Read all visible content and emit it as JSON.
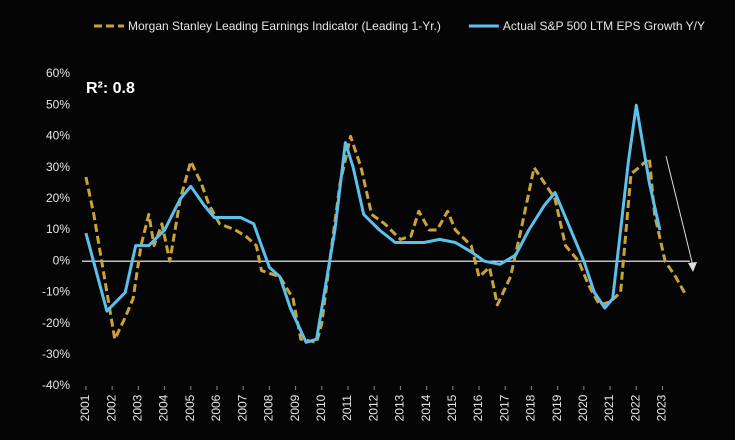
{
  "chart_data": {
    "type": "line",
    "annotation": "R²: 0.8",
    "legend": "top",
    "series": [
      {
        "name": "Morgan Stanley Leading Earnings Indicator (Leading 1-Yr.)",
        "color": "#c9a23a",
        "dash": true,
        "x": [
          2001,
          2001.3,
          2001.7,
          2002.1,
          2002.5,
          2002.8,
          2003.1,
          2003.4,
          2003.6,
          2003.9,
          2004.2,
          2004.6,
          2005,
          2005.4,
          2005.7,
          2006.1,
          2006.7,
          2007.1,
          2007.5,
          2007.7,
          2008.4,
          2008.9,
          2009.2,
          2009.8,
          2010,
          2010.3,
          2010.7,
          2011.1,
          2011.5,
          2011.9,
          2012.4,
          2013,
          2013.4,
          2013.7,
          2014.1,
          2014.4,
          2014.8,
          2015.1,
          2015.7,
          2016,
          2016.4,
          2016.7,
          2017.2,
          2017.6,
          2018.1,
          2018.5,
          2018.9,
          2019.3,
          2019.8,
          2020.2,
          2020.6,
          2021,
          2021.4,
          2021.8,
          2022.1,
          2022.5,
          2022.7,
          2023.1,
          2023.5,
          2023.9
        ],
        "values": [
          27,
          15,
          -5,
          -25,
          -18,
          -12,
          5,
          15,
          5,
          12,
          0,
          20,
          32,
          25,
          18,
          12,
          10,
          8,
          5,
          -3,
          -5,
          -12,
          -25,
          -26,
          -20,
          0,
          25,
          40,
          30,
          15,
          12,
          7,
          8,
          16,
          10,
          10,
          16,
          10,
          5,
          -5,
          -2,
          -14,
          -5,
          10,
          30,
          25,
          20,
          5,
          0,
          -8,
          -14,
          -13,
          -10,
          28,
          30,
          33,
          15,
          0,
          -5,
          -11
        ]
      },
      {
        "name": "Actual S&P 500 LTM EPS Growth Y/Y",
        "color": "#5bc0eb",
        "dash": false,
        "x": [
          2001,
          2001.8,
          2002.5,
          2002.9,
          2003.4,
          2004,
          2004.6,
          2005,
          2005.5,
          2005.9,
          2006.4,
          2006.9,
          2007.4,
          2007.7,
          2008,
          2008.4,
          2008.8,
          2009.4,
          2009.8,
          2010,
          2010.5,
          2010.9,
          2011.2,
          2011.6,
          2012.2,
          2012.8,
          2013.3,
          2013.9,
          2014.5,
          2015.1,
          2015.7,
          2016.2,
          2016.8,
          2017.4,
          2017.9,
          2018.5,
          2018.9,
          2019.5,
          2020,
          2020.4,
          2020.8,
          2021.1,
          2021.4,
          2021.7,
          2022,
          2022.2,
          2022.5,
          2022.9
        ],
        "values": [
          9,
          -16,
          -10,
          5,
          5,
          10,
          20,
          24,
          18,
          14,
          14,
          14,
          12,
          5,
          -2,
          -5,
          -15,
          -26,
          -25,
          -15,
          10,
          38,
          30,
          15,
          10,
          6,
          6,
          6,
          7,
          6,
          3,
          0,
          -1,
          2,
          10,
          18,
          22,
          10,
          0,
          -10,
          -15,
          -12,
          10,
          32,
          50,
          40,
          25,
          10
        ]
      }
    ],
    "xlim": [
      2000.85,
      2024.05
    ],
    "xticks": [
      2001,
      2002,
      2003,
      2004,
      2005,
      2006,
      2007,
      2008,
      2009,
      2010,
      2011,
      2012,
      2013,
      2014,
      2015,
      2016,
      2017,
      2018,
      2019,
      2020,
      2021,
      2022,
      2023
    ],
    "ylim": [
      -40,
      60
    ],
    "yticks": [
      {
        "value": -40,
        "label": "-40%"
      },
      {
        "value": -30,
        "label": "-30%"
      },
      {
        "value": -20,
        "label": "-20%"
      },
      {
        "value": -10,
        "label": "-10%"
      },
      {
        "value": 0,
        "label": "0%"
      },
      {
        "value": 10,
        "label": "10%"
      },
      {
        "value": 20,
        "label": "20%"
      },
      {
        "value": 30,
        "label": "30%"
      },
      {
        "value": 40,
        "label": "40%"
      },
      {
        "value": 50,
        "label": "50%"
      },
      {
        "value": 60,
        "label": "60%"
      }
    ]
  }
}
